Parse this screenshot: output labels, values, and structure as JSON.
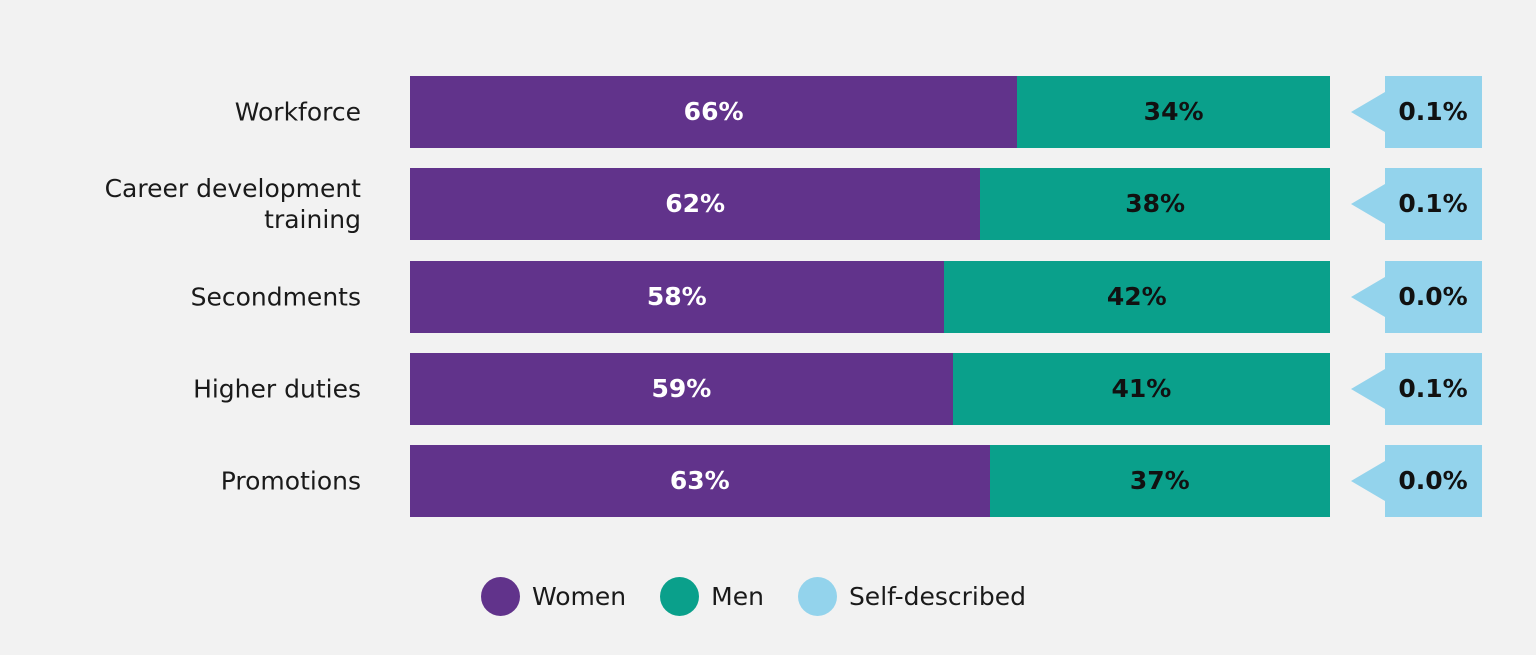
{
  "chart_data": {
    "type": "bar",
    "orientation": "horizontal",
    "stacked": true,
    "percent": true,
    "categories": [
      "Workforce",
      "Career development training",
      "Secondments",
      "Higher duties",
      "Promotions"
    ],
    "category_lines": [
      [
        "Workforce"
      ],
      [
        "Career development",
        "training"
      ],
      [
        "Secondments"
      ],
      [
        "Higher duties"
      ],
      [
        "Promotions"
      ]
    ],
    "series": [
      {
        "name": "Women",
        "color": "#61338b",
        "label_color": "#ffffff",
        "values": [
          66,
          62,
          58,
          59,
          63
        ],
        "value_labels": [
          "66%",
          "62%",
          "58%",
          "59%",
          "63%"
        ]
      },
      {
        "name": "Men",
        "color": "#0aa08b",
        "label_color": "#111111",
        "values": [
          34,
          38,
          42,
          41,
          37
        ],
        "value_labels": [
          "34%",
          "38%",
          "42%",
          "41%",
          "37%"
        ]
      },
      {
        "name": "Self-described",
        "color": "#93d3ec",
        "label_color": "#111111",
        "values": [
          0.1,
          0.1,
          0.0,
          0.1,
          0.0
        ],
        "value_labels": [
          "0.1%",
          "0.1%",
          "0.0%",
          "0.1%",
          "0.0%"
        ],
        "display": "callout"
      }
    ],
    "xlim": [
      0,
      100
    ],
    "grid": false,
    "legend": {
      "position": "bottom",
      "items": [
        "Women",
        "Men",
        "Self-described"
      ]
    },
    "title": "",
    "xlabel": "",
    "ylabel": ""
  }
}
